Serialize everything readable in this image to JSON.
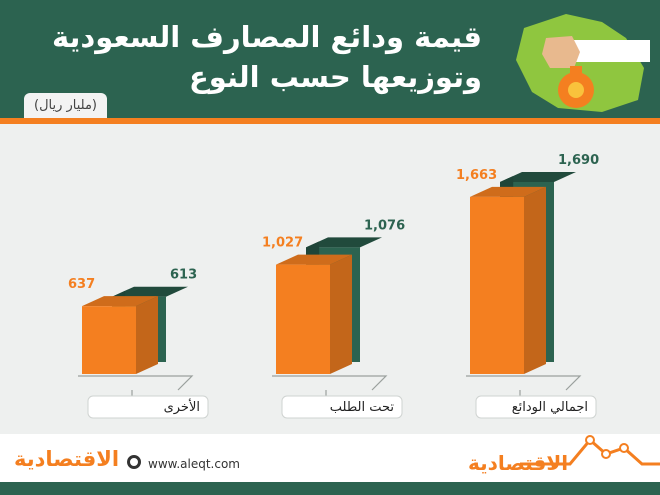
{
  "header": {
    "title_line1": "قيمة ودائع المصارف السعودية",
    "title_line2": "وتوزيعها حسب النوع",
    "unit": "(مليار ريال)"
  },
  "footer": {
    "url": "www.aleqt.com",
    "logo_text": "الاقتصادية"
  },
  "colors": {
    "green": "#2c6350",
    "green_dark": "#1f4a3b",
    "orange": "#f47f20",
    "orange_dark": "#c9661a",
    "background": "#eef0ef"
  },
  "chart_data": {
    "type": "bar",
    "categories": [
      "الأخرى",
      "تحت الطلب",
      "اجمالي الودائع"
    ],
    "series": [
      {
        "color": "#f47f20",
        "values": [
          637,
          1027,
          1663
        ],
        "labels": [
          "637",
          "1,027",
          "1,663"
        ]
      },
      {
        "color": "#2c6350",
        "values": [
          613,
          1076,
          1690
        ],
        "labels": [
          "613",
          "1,076",
          "1,690"
        ]
      }
    ],
    "title": "قيمة ودائع المصارف السعودية وتوزيعها حسب النوع",
    "ylabel": "(مليار ريال)",
    "grid": false
  }
}
